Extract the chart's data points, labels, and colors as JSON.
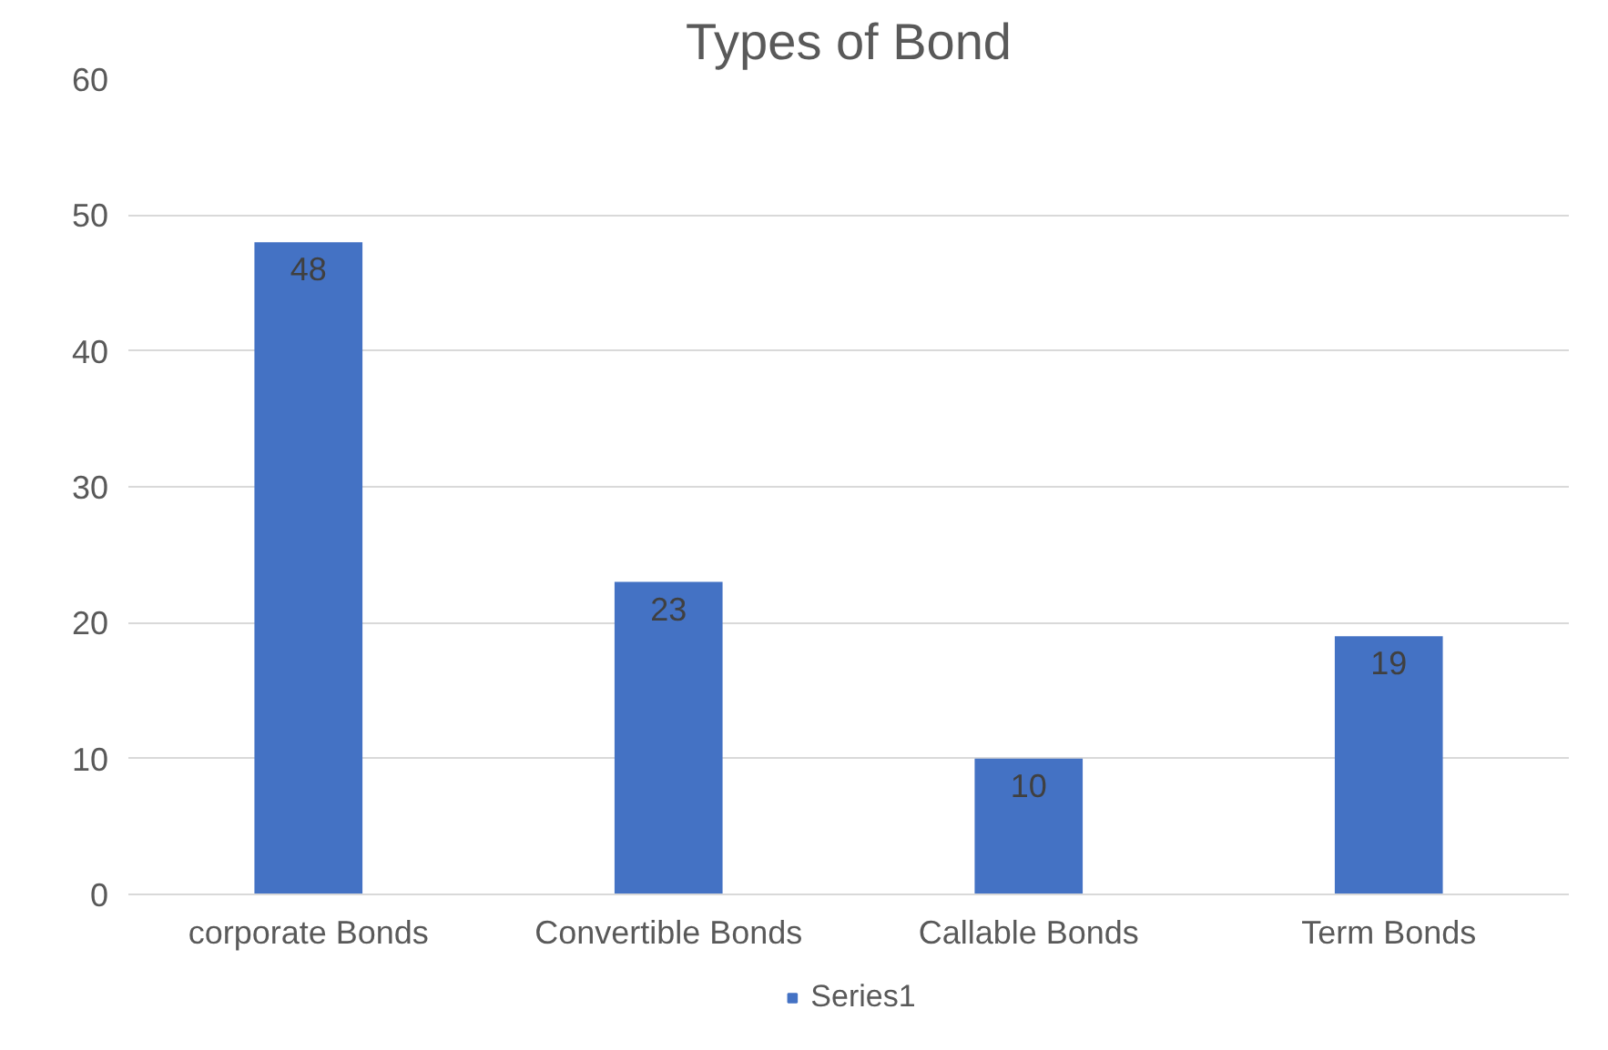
{
  "chart_data": {
    "type": "bar",
    "title": "Types of Bond",
    "categories": [
      "corporate Bonds",
      "Convertible Bonds",
      "Callable Bonds",
      "Term Bonds"
    ],
    "series": [
      {
        "name": "Series1",
        "color": "#4472c4",
        "values": [
          48,
          23,
          10,
          19
        ]
      }
    ],
    "ylim": [
      0,
      60
    ],
    "yticks": [
      0,
      10,
      20,
      30,
      40,
      50,
      60
    ],
    "grid": "y",
    "legend": "bottom",
    "data_labels": true
  }
}
